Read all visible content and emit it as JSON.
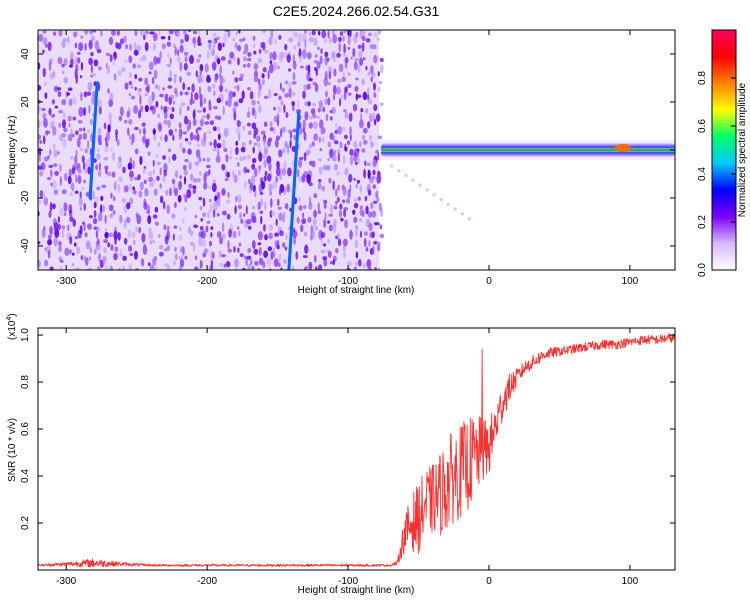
{
  "title": "C2E5.2024.266.02.54.G31",
  "chart_data": [
    {
      "type": "heatmap",
      "xlabel": "Height of straight line (km)",
      "ylabel": "Frequency (Hz)",
      "xlim": [
        -320,
        132
      ],
      "ylim": [
        -50,
        50
      ],
      "x_ticks": [
        "-300",
        "-200",
        "-100",
        "0",
        "100"
      ],
      "x_tick_values": [
        -300,
        -200,
        -100,
        0,
        100
      ],
      "y_ticks": [
        "-40",
        "-20",
        "0",
        "20",
        "40"
      ],
      "y_tick_values": [
        -40,
        -20,
        0,
        20,
        40
      ],
      "colorbar": {
        "label": "Normalized spectral amplitude",
        "ticks": [
          "0.0",
          "0.2",
          "0.4",
          "0.6",
          "0.8"
        ],
        "tick_values": [
          0.0,
          0.2,
          0.4,
          0.6,
          0.8
        ],
        "range": [
          0,
          1
        ],
        "colormap": [
          "#ffffff",
          "#d9b8ff",
          "#7a00ff",
          "#0000ff",
          "#00c8ff",
          "#00ff66",
          "#ffff00",
          "#ff8000",
          "#ff0000",
          "#ff0060"
        ]
      },
      "noise_region": {
        "x_start": -320,
        "x_end": -78,
        "base_color": "#8c4cf0"
      },
      "doppler_streaks": [
        {
          "x_top": -278,
          "y_top": 28,
          "x_bottom": -283,
          "y_bottom": -20,
          "color": "#0066ff"
        },
        {
          "x_top": -135,
          "y_top": 15,
          "x_bottom": -142,
          "y_bottom": -50,
          "color": "#0066ff"
        }
      ],
      "carrier_band": {
        "x_start": -78,
        "x_end": 132,
        "frequency": 0,
        "peak_x": [
          95
        ]
      },
      "grid": false
    },
    {
      "type": "line",
      "xlabel": "Height of straight line (km)",
      "ylabel": "SNR (10 * v/v)",
      "y_multiplier": "(x10",
      "y_multiplier_exp": "4",
      "y_multiplier_close": ")",
      "xlim": [
        -320,
        132
      ],
      "ylim": [
        0,
        1.03
      ],
      "x_ticks": [
        "-300",
        "-200",
        "-100",
        "0",
        "100"
      ],
      "x_tick_values": [
        -300,
        -200,
        -100,
        0,
        100
      ],
      "y_ticks": [
        "0.2",
        "0.4",
        "0.6",
        "0.8",
        "1.0"
      ],
      "y_tick_values": [
        0.2,
        0.4,
        0.6,
        0.8,
        1.0
      ],
      "series": [
        {
          "color": "#ff3030",
          "x": [
            -320,
            -300,
            -280,
            -260,
            -240,
            -220,
            -200,
            -180,
            -160,
            -140,
            -120,
            -100,
            -90,
            -80,
            -70,
            -65,
            -60,
            -55,
            -50,
            -45,
            -40,
            -35,
            -30,
            -25,
            -20,
            -15,
            -10,
            -5,
            0,
            5,
            10,
            15,
            20,
            25,
            30,
            40,
            50,
            60,
            70,
            80,
            90,
            100,
            110,
            120,
            132
          ],
          "values": [
            0.02,
            0.025,
            0.03,
            0.025,
            0.02,
            0.02,
            0.02,
            0.02,
            0.02,
            0.02,
            0.02,
            0.02,
            0.02,
            0.02,
            0.02,
            0.03,
            0.15,
            0.2,
            0.22,
            0.28,
            0.3,
            0.32,
            0.36,
            0.4,
            0.42,
            0.45,
            0.48,
            0.5,
            0.52,
            0.62,
            0.72,
            0.78,
            0.82,
            0.86,
            0.88,
            0.92,
            0.93,
            0.94,
            0.95,
            0.96,
            0.96,
            0.97,
            0.98,
            0.98,
            0.99
          ],
          "noise": [
            0.005,
            0.008,
            0.02,
            0.008,
            0.005,
            0.005,
            0.005,
            0.005,
            0.005,
            0.005,
            0.005,
            0.005,
            0.005,
            0.005,
            0.005,
            0.01,
            0.08,
            0.12,
            0.15,
            0.15,
            0.15,
            0.18,
            0.2,
            0.2,
            0.2,
            0.2,
            0.18,
            0.15,
            0.12,
            0.1,
            0.08,
            0.06,
            0.04,
            0.03,
            0.03,
            0.025,
            0.02,
            0.02,
            0.02,
            0.02,
            0.02,
            0.02,
            0.02,
            0.02,
            0.02
          ]
        }
      ],
      "peak_spike": {
        "x": -5,
        "y": 0.94
      },
      "grid": false
    }
  ]
}
